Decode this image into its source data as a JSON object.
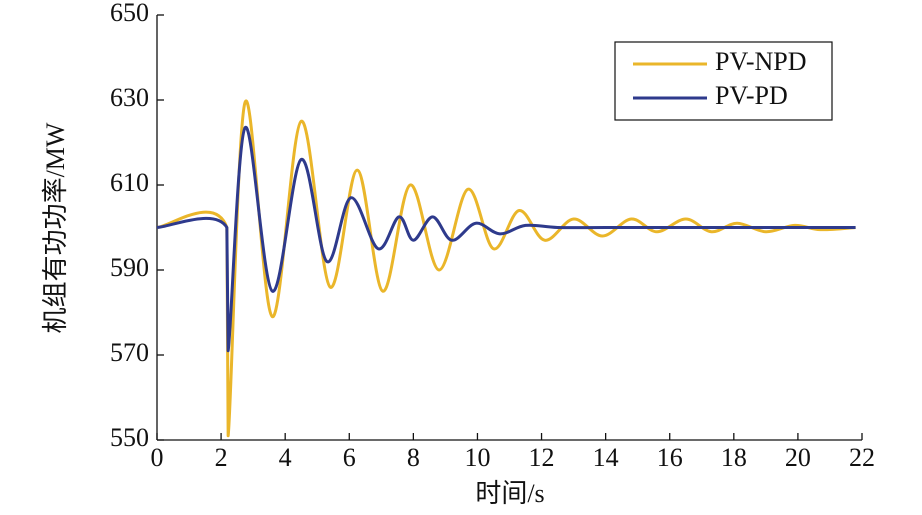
{
  "chart_data": {
    "type": "line",
    "xlabel": "时间/s",
    "ylabel": "机组有功功率/MW",
    "xlim": [
      0,
      22
    ],
    "xticks": [
      0,
      2,
      4,
      6,
      8,
      10,
      12,
      14,
      16,
      18,
      20,
      22
    ],
    "ylim": [
      550,
      650
    ],
    "yticks": [
      550,
      570,
      590,
      610,
      630,
      650
    ],
    "legend": "upper right",
    "series": [
      {
        "name": "PV-NPD",
        "color": "#eab62a",
        "x": [
          0,
          2.18,
          2.22,
          2.75,
          3.6,
          4.5,
          5.4,
          6.25,
          7.05,
          7.9,
          8.8,
          9.7,
          10.5,
          11.3,
          12.1,
          13.0,
          13.9,
          14.8,
          15.6,
          16.5,
          17.3,
          18.1,
          19.0,
          19.9,
          20.7,
          21.8
        ],
        "values": [
          600,
          600,
          551,
          629.5,
          579,
          625,
          586,
          613.5,
          585,
          610,
          590,
          609,
          595,
          604,
          597,
          602,
          598,
          602,
          599,
          602,
          599,
          601,
          599,
          600.5,
          599.5,
          600
        ]
      },
      {
        "name": "PV-PD",
        "color": "#2e3a8c",
        "x": [
          0,
          2.18,
          2.22,
          2.75,
          3.6,
          4.5,
          5.3,
          6.05,
          6.9,
          7.55,
          8.0,
          8.6,
          9.2,
          9.95,
          10.7,
          11.5,
          12.5,
          14.0,
          16.0,
          18.0,
          20.0,
          21.8
        ],
        "values": [
          600,
          600,
          571,
          623.5,
          585,
          616,
          592,
          607,
          595,
          602.5,
          597,
          602.5,
          597,
          601,
          598.5,
          600.5,
          600,
          600,
          600,
          600,
          600,
          600
        ]
      }
    ]
  }
}
